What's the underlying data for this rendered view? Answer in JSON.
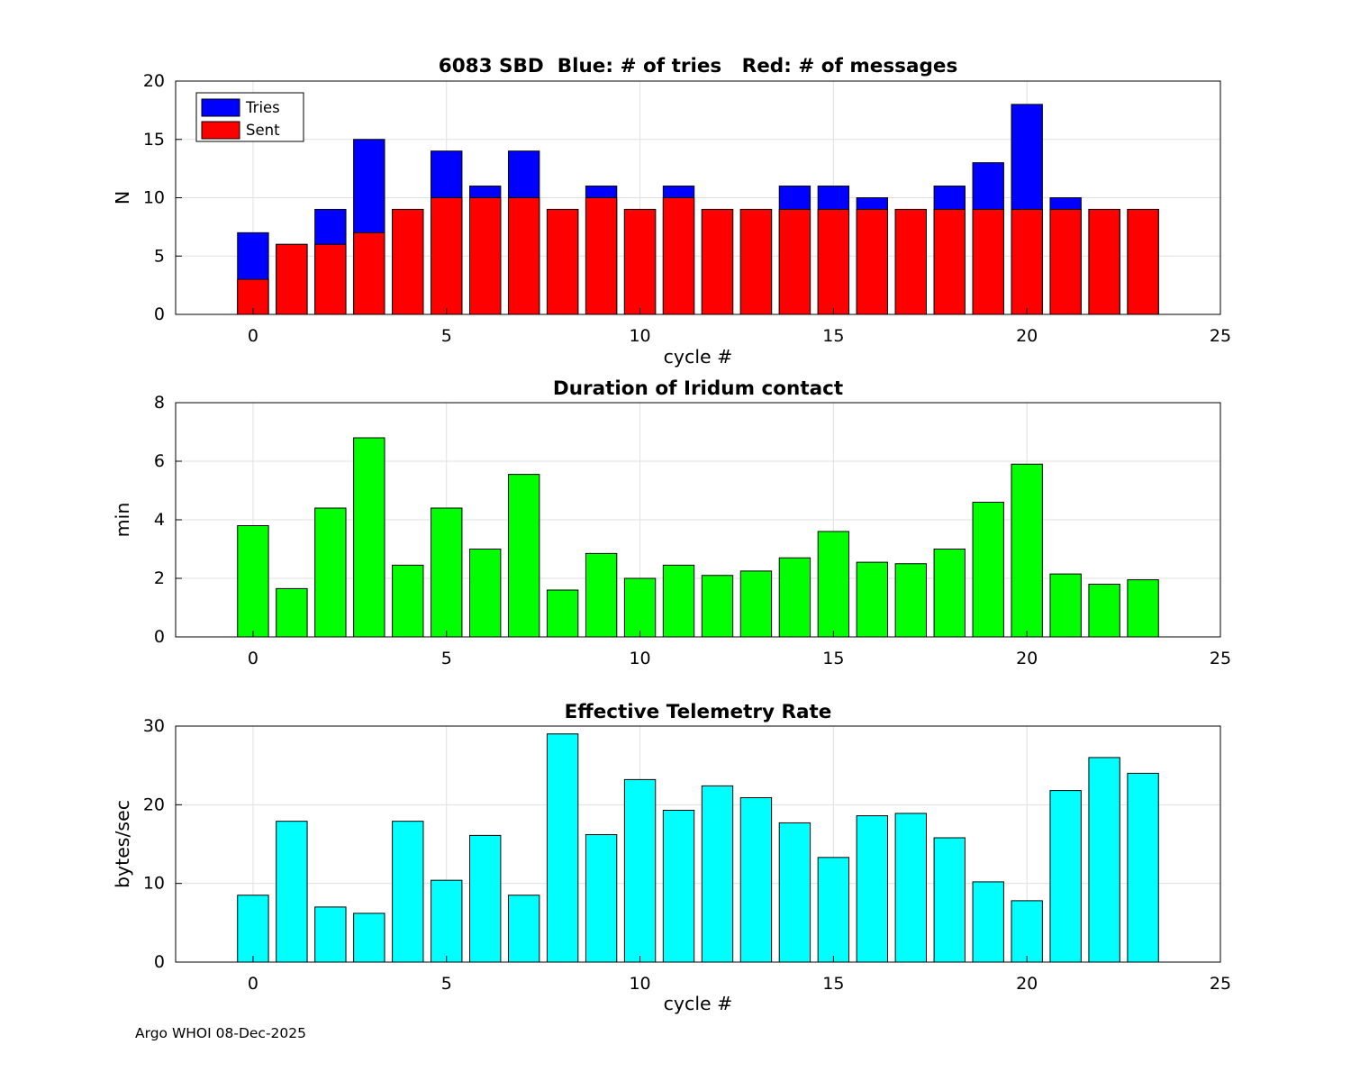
{
  "footer": "Argo WHOI 08-Dec-2025",
  "legend": {
    "position": "top-left",
    "items": [
      {
        "label": "Tries",
        "color": "#0000ff"
      },
      {
        "label": "Sent",
        "color": "#ff0000"
      }
    ]
  },
  "chart_data": [
    {
      "type": "bar",
      "subtype": "stacked-overlay",
      "title": "6083 SBD  Blue: # of tries   Red: # of messages",
      "xlabel": "cycle #",
      "ylabel": "N",
      "xlim": [
        -2,
        25
      ],
      "ylim": [
        0,
        20
      ],
      "xticks": [
        0,
        5,
        10,
        15,
        20,
        25
      ],
      "yticks": [
        0,
        5,
        10,
        15,
        20
      ],
      "grid": true,
      "bar_width": 0.8,
      "categories": [
        0,
        1,
        2,
        3,
        4,
        5,
        6,
        7,
        8,
        9,
        10,
        11,
        12,
        13,
        14,
        15,
        16,
        17,
        18,
        19,
        20,
        21,
        22,
        23
      ],
      "series": [
        {
          "name": "Tries",
          "color": "#0000ff",
          "values": [
            7,
            6,
            9,
            15,
            9,
            14,
            11,
            14,
            9,
            11,
            9,
            11,
            9,
            9,
            11,
            11,
            10,
            9,
            11,
            13,
            18,
            10,
            9,
            9
          ]
        },
        {
          "name": "Sent",
          "color": "#ff0000",
          "values": [
            3,
            6,
            6,
            7,
            9,
            10,
            10,
            10,
            9,
            10,
            9,
            10,
            9,
            9,
            9,
            9,
            9,
            9,
            9,
            9,
            9,
            9,
            9,
            9
          ]
        }
      ]
    },
    {
      "type": "bar",
      "title": "Duration of Iridum contact",
      "xlabel": "",
      "ylabel": "min",
      "xlim": [
        -2,
        25
      ],
      "ylim": [
        0,
        8
      ],
      "xticks": [
        0,
        5,
        10,
        15,
        20,
        25
      ],
      "yticks": [
        0,
        2,
        4,
        6,
        8
      ],
      "grid": true,
      "bar_width": 0.8,
      "color": "#00ff00",
      "categories": [
        0,
        1,
        2,
        3,
        4,
        5,
        6,
        7,
        8,
        9,
        10,
        11,
        12,
        13,
        14,
        15,
        16,
        17,
        18,
        19,
        20,
        21,
        22,
        23
      ],
      "values": [
        3.8,
        1.65,
        4.4,
        6.8,
        2.45,
        4.4,
        3.0,
        5.55,
        1.6,
        2.85,
        2.0,
        2.45,
        2.1,
        2.25,
        2.7,
        3.6,
        2.55,
        2.5,
        3.0,
        4.6,
        5.9,
        2.15,
        1.8,
        1.95
      ]
    },
    {
      "type": "bar",
      "title": "Effective Telemetry Rate",
      "xlabel": "cycle #",
      "ylabel": "bytes/sec",
      "xlim": [
        -2,
        25
      ],
      "ylim": [
        0,
        30
      ],
      "xticks": [
        0,
        5,
        10,
        15,
        20,
        25
      ],
      "yticks": [
        0,
        10,
        20,
        30
      ],
      "grid": true,
      "bar_width": 0.8,
      "color": "#00ffff",
      "categories": [
        0,
        1,
        2,
        3,
        4,
        5,
        6,
        7,
        8,
        9,
        10,
        11,
        12,
        13,
        14,
        15,
        16,
        17,
        18,
        19,
        20,
        21,
        22,
        23
      ],
      "values": [
        8.5,
        17.9,
        7.0,
        6.2,
        17.9,
        10.4,
        16.1,
        8.5,
        29.0,
        16.2,
        23.2,
        19.3,
        22.4,
        20.9,
        17.7,
        13.3,
        18.6,
        18.9,
        15.8,
        10.2,
        7.8,
        21.8,
        26.0,
        24.0
      ]
    }
  ]
}
